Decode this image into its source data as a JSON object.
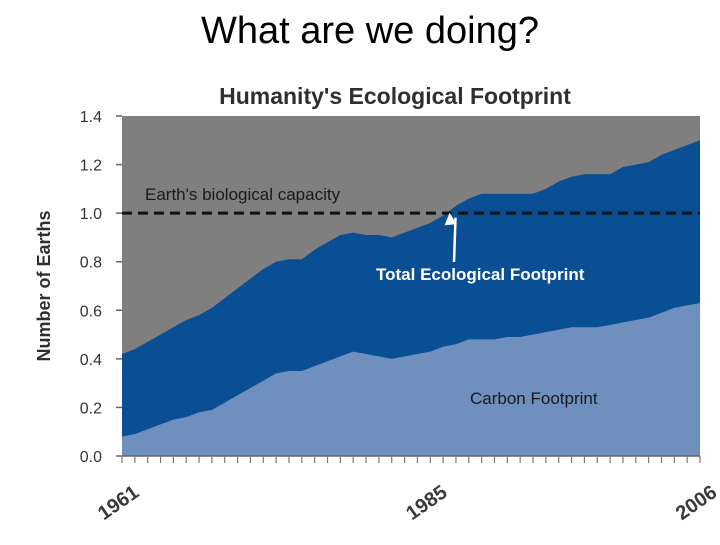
{
  "slide": {
    "title": "What are we doing?"
  },
  "chart_data": {
    "type": "area",
    "title": "Humanity's Ecological Footprint",
    "ylabel": "Number of Earths",
    "xlabel": "",
    "ylim": [
      0,
      1.4
    ],
    "xlim": [
      1961,
      2006
    ],
    "yticks": [
      0.0,
      0.2,
      0.4,
      0.6,
      0.8,
      1.0,
      1.2,
      1.4
    ],
    "ytick_labels": [
      "0.0",
      "0.2",
      "0.4",
      "0.6",
      "0.8",
      "1.0",
      "1.2",
      "1.4"
    ],
    "xtick_labels": [
      {
        "year": 1961,
        "label": "1961"
      },
      {
        "year": 1985,
        "label": "1985"
      },
      {
        "year": 2006,
        "label": "2006"
      }
    ],
    "grid": false,
    "colors": {
      "background": "#7f7f7f",
      "total": "#0a4f94",
      "carbon": "#6f8fbf",
      "capacity_line": "#111111"
    },
    "reference_line": {
      "name": "Earth's biological capacity",
      "y": 1.0
    },
    "annotations": {
      "capacity": "Earth's biological capacity",
      "total": "Total Ecological Footprint",
      "carbon": "Carbon Footprint"
    },
    "x": [
      1961,
      1962,
      1963,
      1964,
      1965,
      1966,
      1967,
      1968,
      1969,
      1970,
      1971,
      1972,
      1973,
      1974,
      1975,
      1976,
      1977,
      1978,
      1979,
      1980,
      1981,
      1982,
      1983,
      1984,
      1985,
      1986,
      1987,
      1988,
      1989,
      1990,
      1991,
      1992,
      1993,
      1994,
      1995,
      1996,
      1997,
      1998,
      1999,
      2000,
      2001,
      2002,
      2003,
      2004,
      2005,
      2006
    ],
    "series": [
      {
        "name": "Total Ecological Footprint",
        "values": [
          0.42,
          0.44,
          0.47,
          0.5,
          0.53,
          0.56,
          0.58,
          0.61,
          0.65,
          0.69,
          0.73,
          0.77,
          0.8,
          0.81,
          0.81,
          0.85,
          0.88,
          0.91,
          0.92,
          0.91,
          0.91,
          0.9,
          0.92,
          0.94,
          0.96,
          0.99,
          1.03,
          1.06,
          1.08,
          1.08,
          1.08,
          1.08,
          1.08,
          1.1,
          1.13,
          1.15,
          1.16,
          1.16,
          1.16,
          1.19,
          1.2,
          1.21,
          1.24,
          1.26,
          1.28,
          1.3
        ]
      },
      {
        "name": "Carbon Footprint",
        "values": [
          0.08,
          0.09,
          0.11,
          0.13,
          0.15,
          0.16,
          0.18,
          0.19,
          0.22,
          0.25,
          0.28,
          0.31,
          0.34,
          0.35,
          0.35,
          0.37,
          0.39,
          0.41,
          0.43,
          0.42,
          0.41,
          0.4,
          0.41,
          0.42,
          0.43,
          0.45,
          0.46,
          0.48,
          0.48,
          0.48,
          0.49,
          0.49,
          0.5,
          0.51,
          0.52,
          0.53,
          0.53,
          0.53,
          0.54,
          0.55,
          0.56,
          0.57,
          0.59,
          0.61,
          0.62,
          0.63
        ]
      }
    ]
  }
}
